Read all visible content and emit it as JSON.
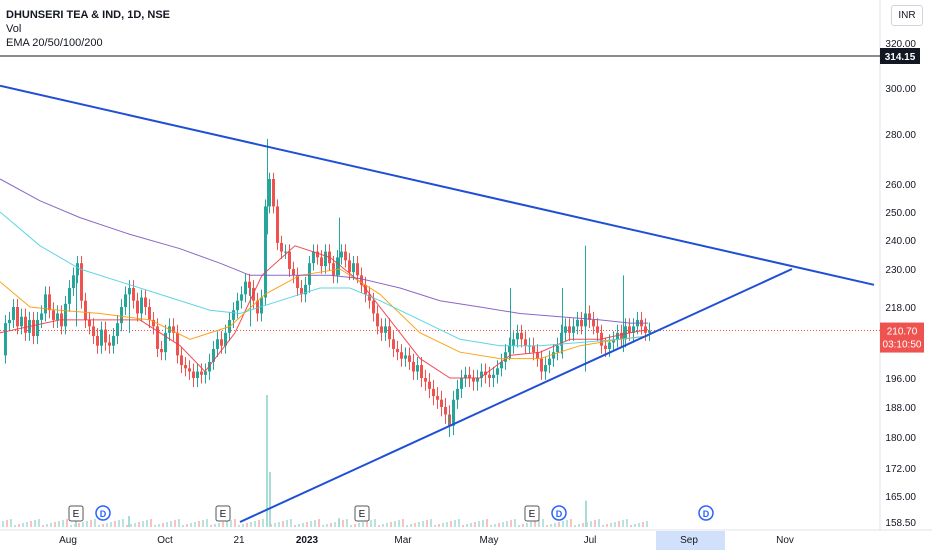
{
  "header": {
    "symbol_line": "DHUNSERI TEA & IND, 1D, NSE",
    "vol_label": "Vol",
    "ema_label": "EMA 20/50/100/200",
    "currency": "INR"
  },
  "colors": {
    "up": "#26a69a",
    "down": "#ef5350",
    "trendline": "#1f4fd6",
    "ema20": "#f23645",
    "ema50": "#ff9800",
    "ema100": "#4dd0e1",
    "ema200": "#7e57c2",
    "axis_highlight": "#d1e0fb"
  },
  "chart_data": {
    "type": "candlestick",
    "title": "DHUNSERI TEA & IND, 1D, NSE",
    "y_axis_ticks": [
      "320.00",
      "300.00",
      "280.00",
      "260.00",
      "250.00",
      "240.00",
      "230.00",
      "218.00",
      "196.00",
      "188.00",
      "180.00",
      "172.00",
      "165.00",
      "158.50"
    ],
    "x_axis_ticks": [
      "Aug",
      "Oct",
      "21",
      "2023",
      "Mar",
      "May",
      "Jul",
      "Sep",
      "Nov"
    ],
    "highlighted_x_range_label": "Sep",
    "price_labels": {
      "high_line": "314.15",
      "last": "210.70",
      "countdown": "03:10:50"
    },
    "ylim": [
      158.5,
      320
    ],
    "close_series": [
      [
        0,
        203
      ],
      [
        4,
        213
      ],
      [
        8,
        214
      ],
      [
        12,
        218
      ],
      [
        16,
        212
      ],
      [
        20,
        215
      ],
      [
        24,
        210
      ],
      [
        28,
        214
      ],
      [
        32,
        209
      ],
      [
        36,
        214
      ],
      [
        40,
        216
      ],
      [
        44,
        222
      ],
      [
        48,
        217
      ],
      [
        52,
        214
      ],
      [
        56,
        216
      ],
      [
        60,
        212
      ],
      [
        64,
        219
      ],
      [
        68,
        224
      ],
      [
        72,
        228
      ],
      [
        76,
        232
      ],
      [
        80,
        220
      ],
      [
        84,
        214
      ],
      [
        88,
        212
      ],
      [
        92,
        209
      ],
      [
        96,
        206
      ],
      [
        100,
        211
      ],
      [
        104,
        207
      ],
      [
        108,
        206
      ],
      [
        112,
        209
      ],
      [
        116,
        213
      ],
      [
        120,
        218
      ],
      [
        124,
        222
      ],
      [
        128,
        224
      ],
      [
        132,
        220
      ],
      [
        136,
        216
      ],
      [
        140,
        221
      ],
      [
        144,
        218
      ],
      [
        148,
        214
      ],
      [
        152,
        212
      ],
      [
        156,
        205
      ],
      [
        160,
        204
      ],
      [
        164,
        210
      ],
      [
        168,
        212
      ],
      [
        172,
        210
      ],
      [
        176,
        203
      ],
      [
        180,
        200
      ],
      [
        184,
        199
      ],
      [
        188,
        198
      ],
      [
        192,
        196
      ],
      [
        196,
        198
      ],
      [
        200,
        197
      ],
      [
        204,
        198
      ],
      [
        208,
        201
      ],
      [
        212,
        205
      ],
      [
        216,
        208
      ],
      [
        220,
        206
      ],
      [
        224,
        210
      ],
      [
        228,
        214
      ],
      [
        232,
        217
      ],
      [
        236,
        220
      ],
      [
        240,
        222
      ],
      [
        244,
        226
      ],
      [
        248,
        224
      ],
      [
        252,
        220
      ],
      [
        256,
        216
      ],
      [
        260,
        221
      ],
      [
        264,
        252
      ],
      [
        268,
        262
      ],
      [
        272,
        252
      ],
      [
        276,
        239
      ],
      [
        280,
        236
      ],
      [
        284,
        236
      ],
      [
        288,
        230
      ],
      [
        292,
        228
      ],
      [
        296,
        224
      ],
      [
        300,
        222
      ],
      [
        304,
        225
      ],
      [
        308,
        232
      ],
      [
        312,
        236
      ],
      [
        316,
        234
      ],
      [
        320,
        231
      ],
      [
        324,
        236
      ],
      [
        328,
        232
      ],
      [
        332,
        228
      ],
      [
        336,
        234
      ],
      [
        340,
        236
      ],
      [
        344,
        233
      ],
      [
        348,
        229
      ],
      [
        352,
        232
      ],
      [
        356,
        228
      ],
      [
        360,
        225
      ],
      [
        364,
        222
      ],
      [
        368,
        220
      ],
      [
        372,
        216
      ],
      [
        376,
        212
      ],
      [
        380,
        210
      ],
      [
        384,
        212
      ],
      [
        388,
        208
      ],
      [
        392,
        205
      ],
      [
        396,
        204
      ],
      [
        400,
        202
      ],
      [
        404,
        203
      ],
      [
        408,
        201
      ],
      [
        412,
        198
      ],
      [
        416,
        200
      ],
      [
        420,
        196
      ],
      [
        424,
        195
      ],
      [
        428,
        193
      ],
      [
        432,
        191
      ],
      [
        436,
        190
      ],
      [
        440,
        188
      ],
      [
        444,
        186
      ],
      [
        448,
        183
      ],
      [
        452,
        190
      ],
      [
        456,
        193
      ],
      [
        460,
        196
      ],
      [
        464,
        197
      ],
      [
        468,
        196
      ],
      [
        472,
        195
      ],
      [
        476,
        196
      ],
      [
        480,
        198
      ],
      [
        484,
        197
      ],
      [
        488,
        196
      ],
      [
        492,
        197
      ],
      [
        496,
        199
      ],
      [
        500,
        201
      ],
      [
        504,
        204
      ],
      [
        508,
        206
      ],
      [
        512,
        208
      ],
      [
        516,
        210
      ],
      [
        520,
        208
      ],
      [
        524,
        206
      ],
      [
        528,
        206
      ],
      [
        532,
        204
      ],
      [
        536,
        202
      ],
      [
        540,
        198
      ],
      [
        544,
        200
      ],
      [
        548,
        202
      ],
      [
        552,
        204
      ],
      [
        556,
        206
      ],
      [
        560,
        210
      ],
      [
        564,
        212
      ],
      [
        568,
        210
      ],
      [
        572,
        212
      ],
      [
        576,
        214
      ],
      [
        580,
        212
      ],
      [
        584,
        216
      ],
      [
        588,
        214
      ],
      [
        592,
        212
      ],
      [
        596,
        210
      ],
      [
        600,
        206
      ],
      [
        604,
        205
      ],
      [
        608,
        207
      ],
      [
        612,
        208
      ],
      [
        616,
        210
      ],
      [
        620,
        208
      ],
      [
        624,
        212
      ],
      [
        628,
        210
      ],
      [
        632,
        212
      ],
      [
        636,
        214
      ],
      [
        640,
        212
      ],
      [
        644,
        210
      ],
      [
        648,
        210.7
      ]
    ],
    "spikes": [
      [
        266,
        278,
        242
      ],
      [
        249,
        224,
        212
      ],
      [
        338,
        248,
        228
      ],
      [
        509,
        224,
        202
      ],
      [
        561,
        224,
        202
      ],
      [
        584,
        238,
        198
      ],
      [
        622,
        228,
        204
      ],
      [
        75,
        232,
        212
      ],
      [
        128,
        226,
        210
      ],
      [
        448,
        186,
        180
      ]
    ],
    "ema": [
      {
        "name": "EMA 20",
        "points": [
          [
            0,
            210
          ],
          [
            60,
            214
          ],
          [
            90,
            214
          ],
          [
            140,
            214
          ],
          [
            180,
            206
          ],
          [
            205,
            198
          ],
          [
            235,
            210
          ],
          [
            262,
            228
          ],
          [
            295,
            238
          ],
          [
            330,
            234
          ],
          [
            360,
            226
          ],
          [
            390,
            214
          ],
          [
            420,
            202
          ],
          [
            450,
            196
          ],
          [
            480,
            196
          ],
          [
            510,
            203
          ],
          [
            540,
            204
          ],
          [
            570,
            208
          ],
          [
            600,
            208
          ],
          [
            630,
            210
          ],
          [
            648,
            211
          ]
        ]
      },
      {
        "name": "EMA 50",
        "points": [
          [
            0,
            226
          ],
          [
            30,
            218
          ],
          [
            60,
            217
          ],
          [
            100,
            216
          ],
          [
            150,
            214
          ],
          [
            190,
            208
          ],
          [
            230,
            212
          ],
          [
            265,
            222
          ],
          [
            300,
            228
          ],
          [
            340,
            230
          ],
          [
            380,
            222
          ],
          [
            420,
            210
          ],
          [
            460,
            204
          ],
          [
            500,
            202
          ],
          [
            540,
            202
          ],
          [
            580,
            206
          ],
          [
            620,
            208
          ],
          [
            648,
            209
          ]
        ]
      },
      {
        "name": "EMA 100",
        "points": [
          [
            0,
            250
          ],
          [
            40,
            238
          ],
          [
            80,
            230
          ],
          [
            120,
            226
          ],
          [
            170,
            221
          ],
          [
            210,
            217
          ],
          [
            240,
            216
          ],
          [
            280,
            220
          ],
          [
            320,
            224
          ],
          [
            350,
            224
          ],
          [
            380,
            220
          ],
          [
            420,
            214
          ],
          [
            460,
            208
          ],
          [
            500,
            206
          ],
          [
            540,
            206
          ],
          [
            580,
            207
          ],
          [
            620,
            208
          ],
          [
            648,
            209
          ]
        ]
      },
      {
        "name": "EMA 200",
        "points": [
          [
            0,
            262
          ],
          [
            40,
            254
          ],
          [
            80,
            248
          ],
          [
            130,
            242
          ],
          [
            180,
            237
          ],
          [
            220,
            232
          ],
          [
            250,
            228
          ],
          [
            290,
            228
          ],
          [
            330,
            228
          ],
          [
            360,
            227
          ],
          [
            400,
            224
          ],
          [
            440,
            220
          ],
          [
            480,
            218
          ],
          [
            520,
            216
          ],
          [
            560,
            215
          ],
          [
            600,
            214
          ],
          [
            630,
            213
          ],
          [
            648,
            213
          ]
        ]
      }
    ],
    "trendlines": [
      {
        "name": "upper",
        "from": [
          0,
          301
        ],
        "to": [
          874,
          225
        ]
      },
      {
        "name": "lower",
        "from": [
          240,
          158.5
        ],
        "to": [
          792,
          230
        ]
      }
    ],
    "volume_spikes": [
      [
        266,
        0.6
      ],
      [
        269,
        0.25
      ],
      [
        585,
        0.12
      ],
      [
        75,
        0.05
      ],
      [
        128,
        0.05
      ],
      [
        338,
        0.04
      ]
    ],
    "event_markers": [
      {
        "x": 76,
        "label": "E",
        "kind": "earnings"
      },
      {
        "x": 103,
        "label": "D",
        "kind": "dividend"
      },
      {
        "x": 223,
        "label": "E",
        "kind": "earnings"
      },
      {
        "x": 362,
        "label": "E",
        "kind": "earnings"
      },
      {
        "x": 532,
        "label": "E",
        "kind": "earnings"
      },
      {
        "x": 559,
        "label": "D",
        "kind": "dividend"
      },
      {
        "x": 706,
        "label": "D",
        "kind": "dividend"
      }
    ]
  }
}
